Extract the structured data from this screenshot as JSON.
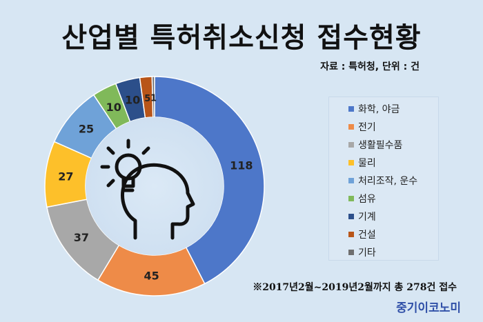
{
  "title": "산업별 특허취소신청 접수현황",
  "source": "자료 : 특허청, 단위 : 건",
  "footnote": "※2017년2월~2019년2월까지 총 278건 접수",
  "brand": "중기이코노미",
  "chart_data": {
    "type": "donut",
    "title": "산업별 특허취소신청 접수현황",
    "categories": [
      "화학, 야금",
      "전기",
      "생활필수품",
      "물리",
      "처리조작, 운수",
      "섬유",
      "기계",
      "건설",
      "기타"
    ],
    "values": [
      118,
      45,
      37,
      27,
      25,
      10,
      10,
      5,
      1
    ],
    "colors": [
      "#4d77c9",
      "#ee8b48",
      "#a8a8a8",
      "#fdc02a",
      "#6fa2d8",
      "#80b95a",
      "#2c4f8a",
      "#b85519",
      "#6f6f6f"
    ],
    "legend_position": "right",
    "center_icon": "head-lightbulb-icon"
  }
}
